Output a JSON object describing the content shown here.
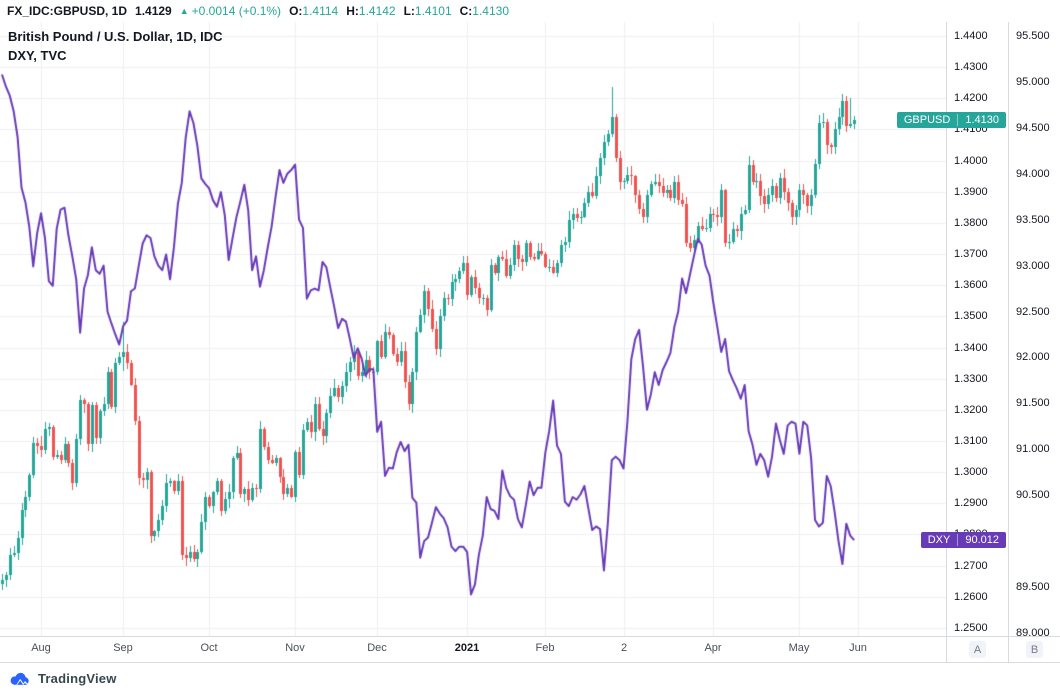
{
  "header": {
    "symbol": "FX_IDC:GBPUSD, 1D",
    "last_price": "1.4129",
    "change_arrow": "▲",
    "change": "+0.0014 (+0.1%)",
    "o_label": "O:",
    "o": "1.4114",
    "h_label": "H:",
    "h": "1.4142",
    "l_label": "L:",
    "l": "1.4101",
    "c_label": "C:",
    "c": "1.4130"
  },
  "legend": {
    "line1": "British Pound / U.S. Dollar, 1D, IDC",
    "line2": "DXY, TVC"
  },
  "price_labels": [
    {
      "name": "GBPUSD",
      "value": "1.4130",
      "v_num": 1.413,
      "scale": "gbp",
      "color": "#26a69a"
    },
    {
      "name": "DXY",
      "value": "90.012",
      "v_num": 90.012,
      "scale": "dxy",
      "color": "#673ab7"
    }
  ],
  "axis_buttons": {
    "a": "A",
    "b": "B"
  },
  "footer": {
    "logo_text": "TradingView"
  },
  "chart_data": {
    "type": "mixed",
    "title": "British Pound / U.S. Dollar, 1D, IDC",
    "overlay_title": "DXY, TVC",
    "grid_color": "#eceff5",
    "gbp_axis": {
      "max": 1.4445,
      "min": 1.2474,
      "ticks": [
        [
          "1.4400",
          1.44
        ],
        [
          "1.4300",
          1.43
        ],
        [
          "1.4200",
          1.42
        ],
        [
          "1.4100",
          1.41
        ],
        [
          "1.4000",
          1.4
        ],
        [
          "1.3900",
          1.39
        ],
        [
          "1.3800",
          1.38
        ],
        [
          "1.3700",
          1.37
        ],
        [
          "1.3600",
          1.36
        ],
        [
          "1.3500",
          1.35
        ],
        [
          "1.3400",
          1.34
        ],
        [
          "1.3300",
          1.33
        ],
        [
          "1.3200",
          1.32
        ],
        [
          "1.3100",
          1.31
        ],
        [
          "1.3000",
          1.3
        ],
        [
          "1.2900",
          1.29
        ],
        [
          "1.2800",
          1.28
        ],
        [
          "1.2700",
          1.27
        ],
        [
          "1.2600",
          1.26
        ],
        [
          "1.2500",
          1.25
        ]
      ]
    },
    "dxy_axis": {
      "max": 95.652,
      "min": 88.967,
      "ticks": [
        [
          "95.500",
          95.5
        ],
        [
          "95.000",
          95.0
        ],
        [
          "94.500",
          94.5
        ],
        [
          "94.000",
          94.0
        ],
        [
          "93.500",
          93.5
        ],
        [
          "93.000",
          93.0
        ],
        [
          "92.500",
          92.5
        ],
        [
          "92.000",
          92.0
        ],
        [
          "91.500",
          91.5
        ],
        [
          "91.000",
          91.0
        ],
        [
          "90.500",
          90.5
        ],
        [
          "89.500",
          89.5
        ],
        [
          "89.000",
          89.0
        ]
      ]
    },
    "x_axis": {
      "total_slots": 242,
      "labels": [
        {
          "text": "Aug",
          "index": 10
        },
        {
          "text": "Sep",
          "index": 31
        },
        {
          "text": "Oct",
          "index": 53
        },
        {
          "text": "Nov",
          "index": 75
        },
        {
          "text": "Dec",
          "index": 96
        },
        {
          "text": "2021",
          "index": 119,
          "year": true
        },
        {
          "text": "Feb",
          "index": 139
        },
        {
          "text": "2",
          "index": 159
        },
        {
          "text": "Apr",
          "index": 182
        },
        {
          "text": "May",
          "index": 204
        },
        {
          "text": "Jun",
          "index": 219
        }
      ]
    },
    "series": [
      {
        "name": "GBPUSD",
        "type": "candlestick",
        "scale": "gbp",
        "up_color": "#26a69a",
        "down_color": "#ef5350",
        "wick_overrides": {
          "31": [
            1.3482,
            1.3325
          ],
          "156": [
            1.4237,
            1.4075
          ],
          "217": [
            1.42,
            1.4105
          ],
          "218": [
            1.4142,
            1.4101
          ]
        },
        "closes": [
          1.2655,
          1.267,
          1.2735,
          1.274,
          1.279,
          1.288,
          1.292,
          1.299,
          1.3095,
          1.3085,
          1.307,
          1.314,
          1.3145,
          1.305,
          1.3055,
          1.304,
          1.309,
          1.303,
          1.2965,
          1.3105,
          1.323,
          1.322,
          1.309,
          1.3215,
          1.311,
          1.3195,
          1.322,
          1.332,
          1.321,
          1.335,
          1.337,
          1.3385,
          1.335,
          1.328,
          1.3165,
          1.298,
          1.2975,
          1.3,
          1.2795,
          1.281,
          1.2845,
          1.289,
          1.2965,
          1.297,
          1.294,
          1.297,
          1.2735,
          1.2725,
          1.2745,
          1.272,
          1.2745,
          1.284,
          1.292,
          1.289,
          1.2935,
          1.297,
          1.2875,
          1.2915,
          1.2935,
          1.3045,
          1.306,
          1.293,
          1.2945,
          1.291,
          1.295,
          1.2945,
          1.314,
          1.308,
          1.304,
          1.303,
          1.3045,
          1.2985,
          1.293,
          1.295,
          1.292,
          1.3065,
          1.299,
          1.3135,
          1.316,
          1.313,
          1.322,
          1.314,
          1.3115,
          1.319,
          1.3245,
          1.327,
          1.324,
          1.3275,
          1.332,
          1.3355,
          1.3385,
          1.331,
          1.332,
          1.336,
          1.332,
          1.332,
          1.342,
          1.337,
          1.345,
          1.344,
          1.338,
          1.3355,
          1.339,
          1.329,
          1.322,
          1.332,
          1.345,
          1.3505,
          1.358,
          1.3525,
          1.346,
          1.3395,
          1.35,
          1.356,
          1.3555,
          1.361,
          1.362,
          1.3645,
          1.367,
          1.357,
          1.3625,
          1.359,
          1.356,
          1.356,
          1.352,
          1.3665,
          1.364,
          1.369,
          1.3685,
          1.363,
          1.3665,
          1.373,
          1.3685,
          1.3675,
          1.3735,
          1.369,
          1.3685,
          1.371,
          1.37,
          1.366,
          1.366,
          1.364,
          1.367,
          1.373,
          1.374,
          1.381,
          1.383,
          1.3815,
          1.382,
          1.3865,
          1.39,
          1.3885,
          1.395,
          1.401,
          1.406,
          1.4085,
          1.414,
          1.401,
          1.393,
          1.3935,
          1.3955,
          1.395,
          1.389,
          1.3845,
          1.382,
          1.389,
          1.3925,
          1.393,
          1.392,
          1.3895,
          1.3905,
          1.388,
          1.393,
          1.3875,
          1.386,
          1.3735,
          1.372,
          1.3745,
          1.379,
          1.378,
          1.3785,
          1.383,
          1.3825,
          1.382,
          1.3905,
          1.3735,
          1.374,
          1.378,
          1.3775,
          1.383,
          1.384,
          1.3985,
          1.393,
          1.3935,
          1.3885,
          1.386,
          1.389,
          1.392,
          1.388,
          1.3945,
          1.39,
          1.3865,
          1.382,
          1.384,
          1.3905,
          1.389,
          1.3855,
          1.389,
          1.399,
          1.412,
          1.4125,
          1.405,
          1.4045,
          1.41,
          1.414,
          1.419,
          1.411,
          1.4116,
          1.413
        ]
      },
      {
        "name": "DXY",
        "type": "line",
        "scale": "dxy",
        "color": "#673ab7",
        "values": [
          95.08,
          94.95,
          94.85,
          94.68,
          94.4,
          93.85,
          93.69,
          93.42,
          92.99,
          93.35,
          93.57,
          93.3,
          92.83,
          92.78,
          93.4,
          93.61,
          93.63,
          93.33,
          93.1,
          92.85,
          92.27,
          92.75,
          92.9,
          93.2,
          92.95,
          92.91,
          93.0,
          92.5,
          92.37,
          92.25,
          92.14,
          92.34,
          92.4,
          92.72,
          92.75,
          93.0,
          93.24,
          93.33,
          93.3,
          93.1,
          93.0,
          92.95,
          93.12,
          92.85,
          93.2,
          93.67,
          93.9,
          94.39,
          94.68,
          94.55,
          94.3,
          93.95,
          93.89,
          93.84,
          93.71,
          93.64,
          93.8,
          93.55,
          93.06,
          93.3,
          93.53,
          93.7,
          93.88,
          93.6,
          92.95,
          93.1,
          92.77,
          92.95,
          93.2,
          93.43,
          93.75,
          94.04,
          93.9,
          94.0,
          94.04,
          94.1,
          93.5,
          93.41,
          92.64,
          92.73,
          92.75,
          92.73,
          93.04,
          92.98,
          92.76,
          92.55,
          92.32,
          92.42,
          92.39,
          92.2,
          91.99,
          92.1,
          91.99,
          91.8,
          91.87,
          91.87,
          91.19,
          91.3,
          90.71,
          90.8,
          90.79,
          90.97,
          91.08,
          90.98,
          91.05,
          90.47,
          90.42,
          89.82,
          90.0,
          90.04,
          90.2,
          90.37,
          90.3,
          90.25,
          90.15,
          89.94,
          89.89,
          89.94,
          89.94,
          89.88,
          89.42,
          89.53,
          89.85,
          90.06,
          90.48,
          90.35,
          90.33,
          90.24,
          90.77,
          90.58,
          90.49,
          90.45,
          90.24,
          90.15,
          90.39,
          90.65,
          90.5,
          90.58,
          90.58,
          90.96,
          91.2,
          91.53,
          91.04,
          90.95,
          90.43,
          90.38,
          90.48,
          90.45,
          90.51,
          90.6,
          90.36,
          90.12,
          90.16,
          90.13,
          89.68,
          90.2,
          90.88,
          90.92,
          90.88,
          90.79,
          91.3,
          91.98,
          92.2,
          92.3,
          91.9,
          91.43,
          91.6,
          91.84,
          91.7,
          91.86,
          91.95,
          92.05,
          92.33,
          92.5,
          92.86,
          92.7,
          92.9,
          93.1,
          93.29,
          93.23,
          93.0,
          92.89,
          92.59,
          92.33,
          92.06,
          92.2,
          91.85,
          91.75,
          91.66,
          91.55,
          91.7,
          91.2,
          91.05,
          90.83,
          90.95,
          90.88,
          90.7,
          90.92,
          91.28,
          91.1,
          90.95,
          91.26,
          91.3,
          91.28,
          90.95,
          91.3,
          91.26,
          90.9,
          90.23,
          90.16,
          90.2,
          90.71,
          90.6,
          90.32,
          90.0,
          89.75,
          90.19,
          90.06,
          90.01
        ]
      }
    ]
  }
}
